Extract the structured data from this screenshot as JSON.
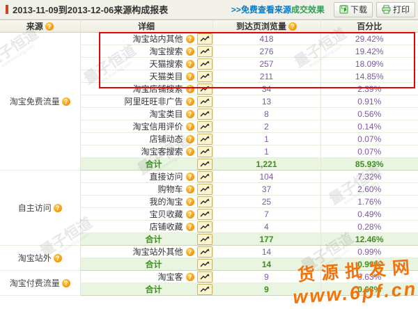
{
  "header": {
    "title": "2013-11-09到2013-12-06来源构成报表",
    "link_blue": ">>免费查看来源",
    "link_green": "成交效果",
    "download_label": "下载",
    "print_label": "打印"
  },
  "columns": {
    "source": "来源",
    "detail": "详细",
    "views": "到达页浏览量",
    "percent": "百分比"
  },
  "totals_label": "合计",
  "help_glyph": "?",
  "sections": [
    {
      "source": "淘宝免费流量",
      "rows": [
        {
          "label": "淘宝站内其他",
          "views": "418",
          "percent": "29.42%",
          "highlight": true
        },
        {
          "label": "淘宝搜索",
          "views": "276",
          "percent": "19.42%",
          "highlight": true
        },
        {
          "label": "天猫搜索",
          "views": "257",
          "percent": "18.09%",
          "highlight": true
        },
        {
          "label": "天猫类目",
          "views": "211",
          "percent": "14.85%",
          "highlight": true
        },
        {
          "label": "淘宝店铺搜索",
          "views": "34",
          "percent": "2.39%"
        },
        {
          "label": "阿里旺旺非广告",
          "views": "13",
          "percent": "0.91%"
        },
        {
          "label": "淘宝类目",
          "views": "8",
          "percent": "0.56%"
        },
        {
          "label": "淘宝信用评价",
          "views": "2",
          "percent": "0.14%"
        },
        {
          "label": "店铺动态",
          "views": "1",
          "percent": "0.07%"
        },
        {
          "label": "淘宝客搜索",
          "views": "1",
          "percent": "0.07%"
        }
      ],
      "total": {
        "views": "1,221",
        "percent": "85.93%"
      }
    },
    {
      "source": "自主访问",
      "rows": [
        {
          "label": "直接访问",
          "views": "104",
          "percent": "7.32%"
        },
        {
          "label": "购物车",
          "views": "37",
          "percent": "2.60%"
        },
        {
          "label": "我的淘宝",
          "views": "25",
          "percent": "1.76%"
        },
        {
          "label": "宝贝收藏",
          "views": "7",
          "percent": "0.49%"
        },
        {
          "label": "店铺收藏",
          "views": "4",
          "percent": "0.28%"
        }
      ],
      "total": {
        "views": "177",
        "percent": "12.46%"
      }
    },
    {
      "source": "淘宝站外",
      "rows": [
        {
          "label": "淘宝站外其他",
          "views": "14",
          "percent": "0.99%"
        }
      ],
      "total": {
        "views": "14",
        "percent": "0.99%"
      }
    },
    {
      "source": "淘宝付费流量",
      "rows": [
        {
          "label": "淘宝客",
          "views": "9",
          "percent": "0.63%"
        }
      ],
      "total": {
        "views": "9",
        "percent": "0.63%"
      }
    }
  ],
  "watermarks": {
    "brand": "量子恒道",
    "brand_url": "www.linezing.com",
    "overlay_line1": "货源批发网",
    "overlay_line2": "www.6pf.cn"
  },
  "colors": {
    "accent_red": "#cc4422",
    "highlight_border": "#e30505",
    "total_green": "#3f8d22",
    "value_purple": "#7d58a2",
    "link_blue": "#0a79c1",
    "watermark_orange": "#f2720c"
  }
}
